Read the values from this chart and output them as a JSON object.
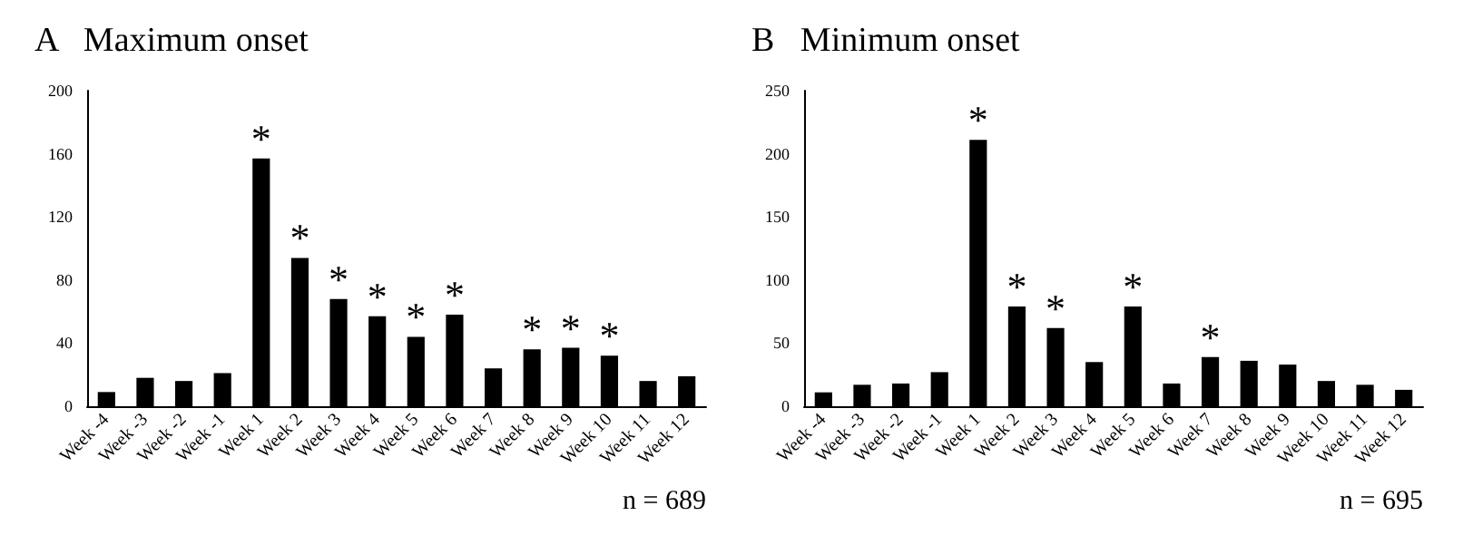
{
  "chart_data": [
    {
      "type": "bar",
      "title": "A   Maximum onset",
      "categories": [
        "Week -4",
        "Week -3",
        "Week -2",
        "Week -1",
        "Week 1",
        "Week 2",
        "Week 3",
        "Week 4",
        "Week 5",
        "Week 6",
        "Week 7",
        "Week 8",
        "Week 9",
        "Week 10",
        "Week 11",
        "Week 12"
      ],
      "values": [
        9,
        18,
        16,
        21,
        157,
        94,
        68,
        57,
        44,
        58,
        24,
        36,
        37,
        32,
        16,
        19
      ],
      "color": "#000000",
      "ylim": [
        0,
        200
      ],
      "yticks": [
        0,
        40,
        80,
        120,
        160,
        200
      ],
      "grid": false,
      "annotations": [
        {
          "text": "*",
          "x": "Week 1",
          "y": 157
        },
        {
          "text": "*",
          "x": "Week 2",
          "y": 94
        },
        {
          "text": "*",
          "x": "Week 3",
          "y": 68
        },
        {
          "text": "*",
          "x": "Week 4",
          "y": 57
        },
        {
          "text": "*",
          "x": "Week 5",
          "y": 44
        },
        {
          "text": "*",
          "x": "Week 6",
          "y": 58
        },
        {
          "text": "*",
          "x": "Week 8",
          "y": 36
        },
        {
          "text": "*",
          "x": "Week 9",
          "y": 37
        },
        {
          "text": "*",
          "x": "Week 10",
          "y": 32
        },
        "n = 689"
      ]
    },
    {
      "type": "bar",
      "title": "B   Minimum onset",
      "categories": [
        "Week -4",
        "Week -3",
        "Week -2",
        "Week -1",
        "Week 1",
        "Week 2",
        "Week 3",
        "Week 4",
        "Week 5",
        "Week 6",
        "Week 7",
        "Week 8",
        "Week 9",
        "Week 10",
        "Week 11",
        "Week 12"
      ],
      "values": [
        11,
        17,
        18,
        27,
        211,
        79,
        62,
        35,
        79,
        18,
        39,
        36,
        33,
        20,
        17,
        13
      ],
      "color": "#000000",
      "ylim": [
        0,
        250
      ],
      "yticks": [
        0,
        50,
        100,
        150,
        200,
        250
      ],
      "grid": false,
      "annotations": [
        {
          "text": "*",
          "x": "Week 1",
          "y": 211
        },
        {
          "text": "*",
          "x": "Week 2",
          "y": 79
        },
        {
          "text": "*",
          "x": "Week 3",
          "y": 62
        },
        {
          "text": "*",
          "x": "Week 5",
          "y": 79
        },
        {
          "text": "*",
          "x": "Week 7",
          "y": 39
        },
        "n = 695"
      ]
    }
  ]
}
